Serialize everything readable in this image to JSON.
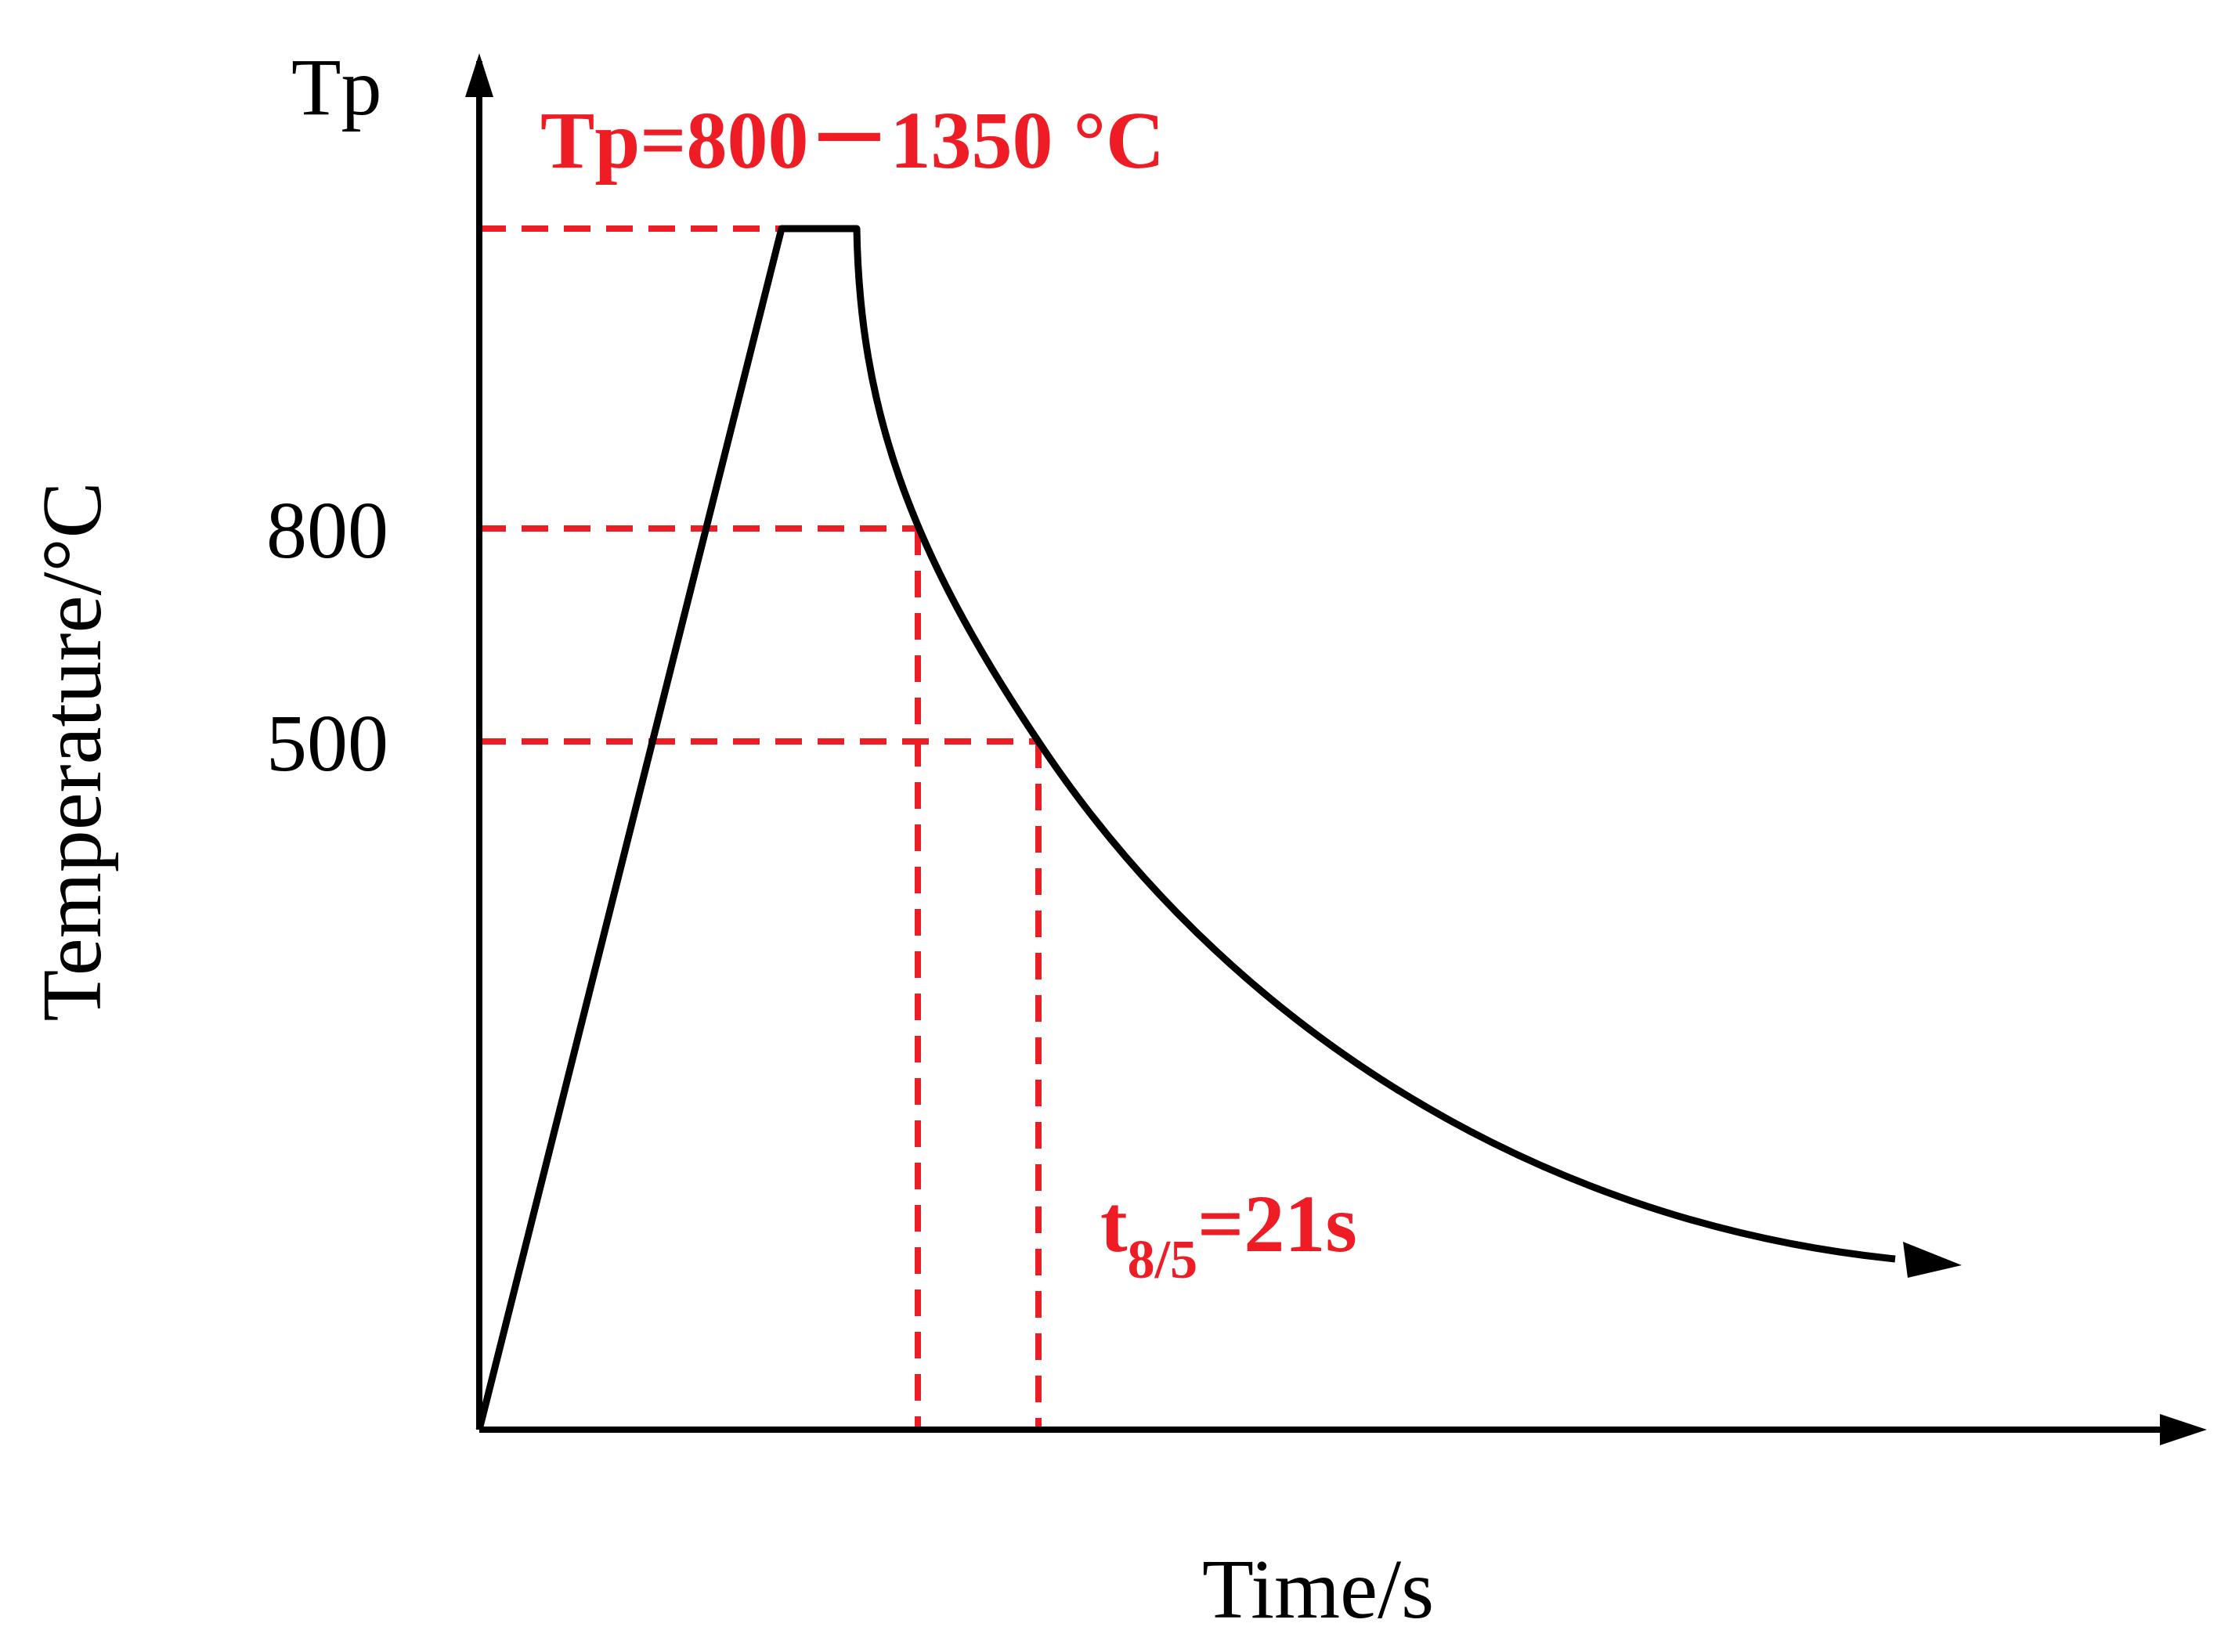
{
  "colors": {
    "curve": "#000000",
    "guide": "#ee1c25",
    "axis": "#000000",
    "background": "#ffffff"
  },
  "diagram": {
    "y_axis_title": "Temperature/°C",
    "x_axis_title": "Time/s",
    "y_ticks": {
      "peak": "Tp",
      "upper": "800",
      "lower": "500"
    },
    "annotations": {
      "peak_range": "Tp=800－1350 °C",
      "cooling_time": {
        "main": "t",
        "subscript": "8/5",
        "value": "=21s"
      }
    }
  }
}
